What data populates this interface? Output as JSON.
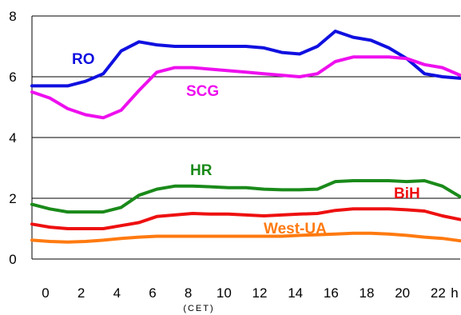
{
  "chart_data": {
    "type": "line",
    "title": "",
    "xlabel": "h",
    "x_sublabel": "(CET)",
    "ylabel": "",
    "x_ticks": [
      "0",
      "2",
      "4",
      "6",
      "8",
      "10",
      "12",
      "14",
      "16",
      "18",
      "20",
      "22"
    ],
    "y_ticks": [
      "0",
      "2",
      "4",
      "6",
      "8"
    ],
    "xlim": [
      0,
      24
    ],
    "ylim": [
      0,
      8
    ],
    "grid": true,
    "legend": "inline labels next to lines",
    "x": [
      0,
      1,
      2,
      3,
      4,
      5,
      6,
      7,
      8,
      9,
      10,
      11,
      12,
      13,
      14,
      15,
      16,
      17,
      18,
      19,
      20,
      21,
      22,
      23,
      24
    ],
    "series": [
      {
        "name": "RO",
        "color": "#1010e0",
        "values": [
          5.7,
          5.7,
          5.7,
          5.85,
          6.1,
          6.85,
          7.15,
          7.05,
          7.0,
          7.0,
          7.0,
          7.0,
          7.0,
          6.95,
          6.8,
          6.75,
          7.0,
          7.5,
          7.3,
          7.2,
          6.95,
          6.6,
          6.1,
          6.0,
          5.95
        ]
      },
      {
        "name": "SCG",
        "color": "#ee10ee",
        "values": [
          5.5,
          5.3,
          4.95,
          4.75,
          4.65,
          4.9,
          5.55,
          6.15,
          6.3,
          6.3,
          6.25,
          6.2,
          6.15,
          6.1,
          6.05,
          6.0,
          6.1,
          6.5,
          6.65,
          6.65,
          6.65,
          6.6,
          6.4,
          6.3,
          6.05
        ]
      },
      {
        "name": "HR",
        "color": "#1a8a1a",
        "values": [
          1.8,
          1.65,
          1.55,
          1.55,
          1.55,
          1.7,
          2.1,
          2.3,
          2.4,
          2.4,
          2.38,
          2.35,
          2.35,
          2.3,
          2.28,
          2.28,
          2.3,
          2.55,
          2.58,
          2.58,
          2.58,
          2.55,
          2.58,
          2.4,
          2.05
        ]
      },
      {
        "name": "BiH",
        "color": "#ee1010",
        "values": [
          1.15,
          1.05,
          1.0,
          1.0,
          1.0,
          1.1,
          1.2,
          1.4,
          1.45,
          1.5,
          1.48,
          1.48,
          1.45,
          1.42,
          1.45,
          1.48,
          1.5,
          1.6,
          1.65,
          1.65,
          1.65,
          1.62,
          1.58,
          1.42,
          1.3
        ]
      },
      {
        "name": "West-UA",
        "color": "#ff7a10",
        "values": [
          0.62,
          0.58,
          0.56,
          0.58,
          0.62,
          0.68,
          0.72,
          0.75,
          0.75,
          0.75,
          0.75,
          0.75,
          0.75,
          0.75,
          0.75,
          0.78,
          0.8,
          0.82,
          0.85,
          0.85,
          0.82,
          0.78,
          0.72,
          0.68,
          0.6
        ]
      }
    ]
  }
}
